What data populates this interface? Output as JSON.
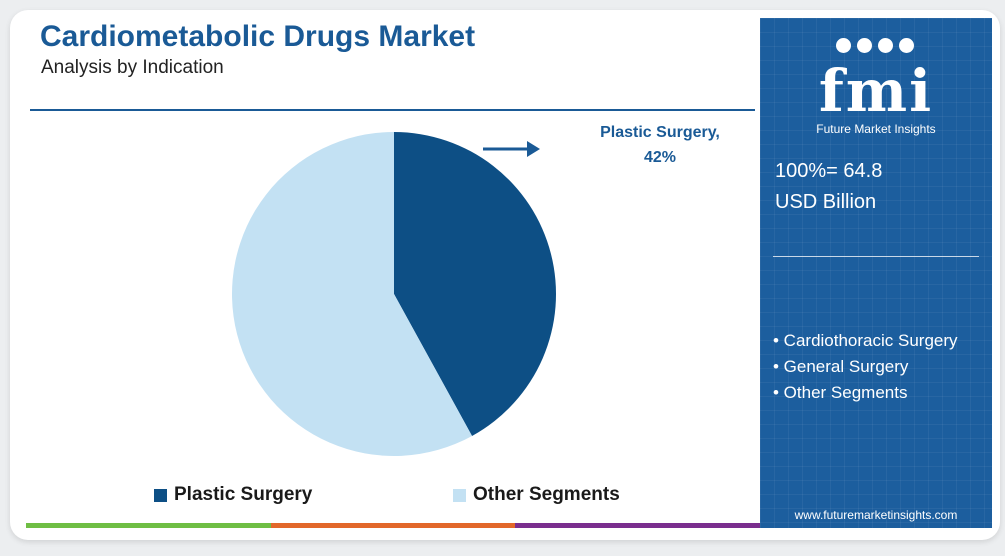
{
  "header": {
    "title": "Cardiometabolic Drugs Market",
    "subtitle": "Analysis by Indication"
  },
  "chart_data": {
    "type": "pie",
    "title": "Cardiometabolic Drugs Market",
    "subtitle": "Analysis by Indication",
    "categories": [
      "Plastic Surgery",
      "Other Segments"
    ],
    "values": [
      42,
      58
    ],
    "unit": "%",
    "colors": [
      "#0d4f85",
      "#c3e1f3"
    ],
    "labels": [
      {
        "category": "Plastic Surgery",
        "text": "Plastic Surgery,",
        "value_text": "42%"
      }
    ],
    "legend": [
      "Plastic Surgery",
      "Other Segments"
    ],
    "legend_position": "bottom"
  },
  "side_panel": {
    "logo_text": "fmi",
    "logo_subtitle": "Future Market Insights",
    "total_line1": "100%= 64.8",
    "total_line2": "USD Billion",
    "segments": [
      "• Cardiothoracic Surgery",
      "• General Surgery",
      "• Other Segments"
    ],
    "website": "www.futuremarketinsights.com",
    "background_color": "#1c5e9e"
  },
  "bottom_bar_colors": [
    "#6fbe44",
    "#e2672a",
    "#7a2e8e"
  ]
}
